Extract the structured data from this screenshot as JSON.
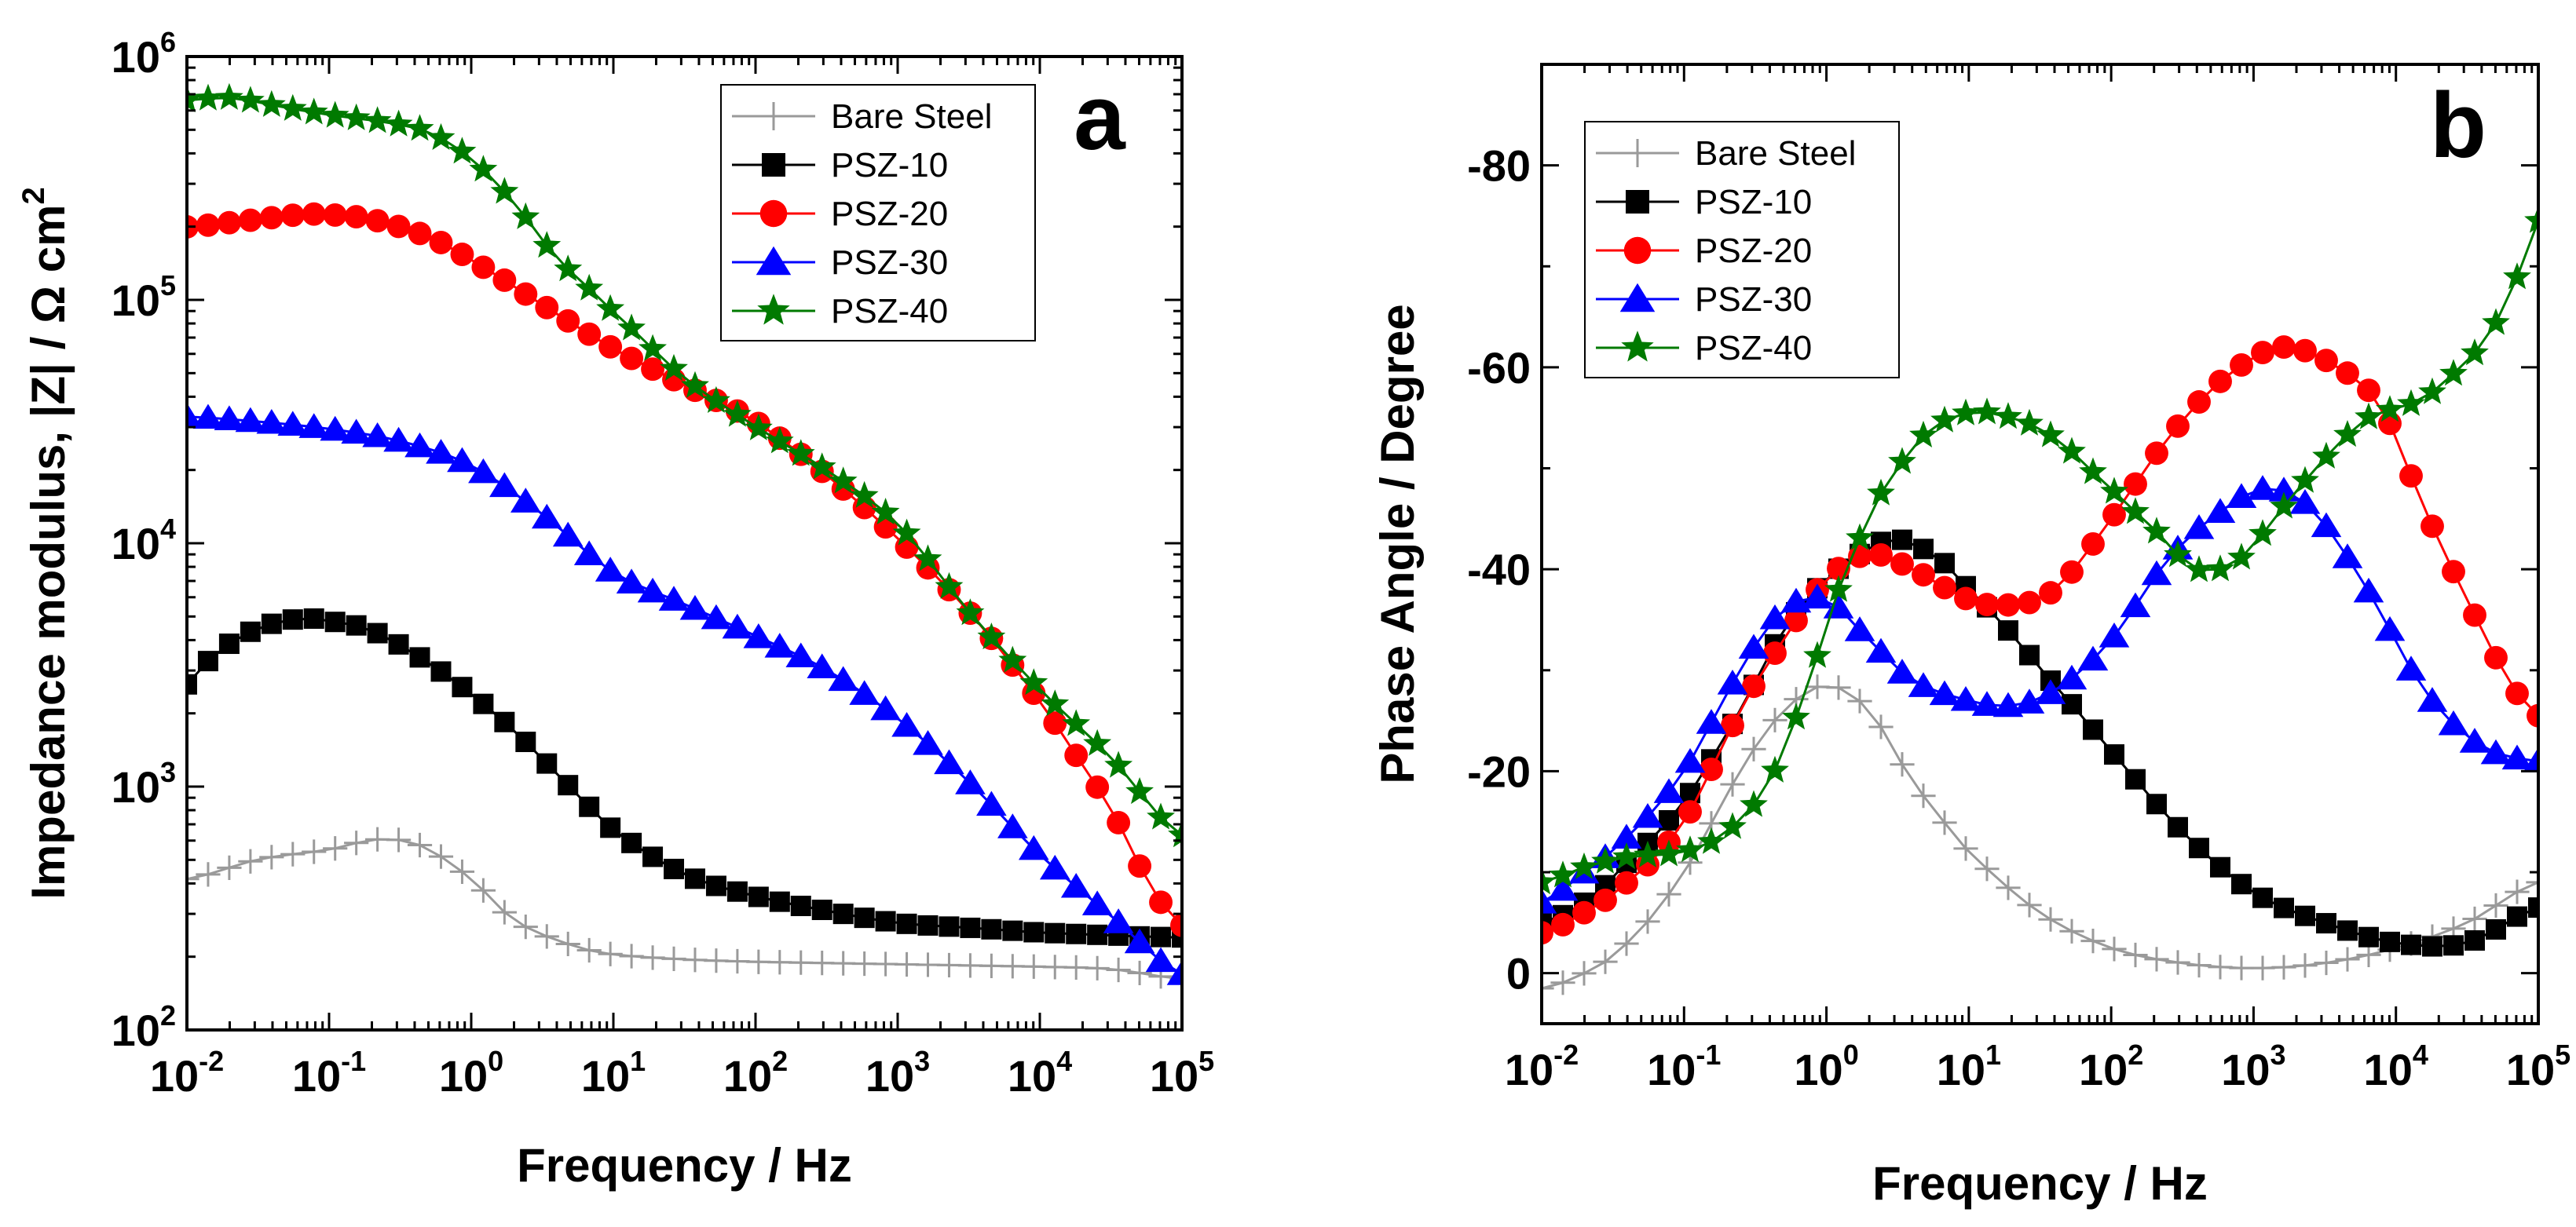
{
  "chart_data": [
    {
      "type": "line",
      "panel_label": "a",
      "xlabel": "Frequency / Hz",
      "ylabel": "Impedance modulus, |Z| / Ω cm",
      "ylabel_sup": "2",
      "x_scale": "log",
      "y_scale": "log",
      "xlim": [
        0.01,
        100000
      ],
      "ylim": [
        100,
        1000000
      ],
      "x_tick_labels": [
        {
          "base": "10",
          "exp": "-2"
        },
        {
          "base": "10",
          "exp": "-1"
        },
        {
          "base": "10",
          "exp": "0"
        },
        {
          "base": "10",
          "exp": "1"
        },
        {
          "base": "10",
          "exp": "2"
        },
        {
          "base": "10",
          "exp": "3"
        },
        {
          "base": "10",
          "exp": "4"
        },
        {
          "base": "10",
          "exp": "5"
        }
      ],
      "y_tick_labels": [
        {
          "base": "10",
          "exp": "2"
        },
        {
          "base": "10",
          "exp": "3"
        },
        {
          "base": "10",
          "exp": "4"
        },
        {
          "base": "10",
          "exp": "5"
        },
        {
          "base": "10",
          "exp": "6"
        }
      ],
      "legend_position": "top-right",
      "series": [
        {
          "name": "Bare Steel",
          "color": "#9a9a9a",
          "marker": "plus",
          "points": [
            [
              -2,
              2.62
            ],
            [
              -1.5,
              2.7
            ],
            [
              -1,
              2.74
            ],
            [
              -0.7,
              2.78
            ],
            [
              -0.5,
              2.78
            ],
            [
              -0.3,
              2.74
            ],
            [
              0,
              2.62
            ],
            [
              0.3,
              2.45
            ],
            [
              0.7,
              2.35
            ],
            [
              1,
              2.31
            ],
            [
              1.5,
              2.29
            ],
            [
              2,
              2.28
            ],
            [
              3,
              2.27
            ],
            [
              4,
              2.26
            ],
            [
              4.5,
              2.25
            ],
            [
              5,
              2.21
            ]
          ]
        },
        {
          "name": "PSZ-10",
          "color": "#000000",
          "marker": "square",
          "points": [
            [
              -2,
              3.42
            ],
            [
              -1.8,
              3.55
            ],
            [
              -1.5,
              3.65
            ],
            [
              -1.2,
              3.69
            ],
            [
              -1,
              3.68
            ],
            [
              -0.7,
              3.64
            ],
            [
              -0.3,
              3.51
            ],
            [
              0,
              3.38
            ],
            [
              0.3,
              3.23
            ],
            [
              0.6,
              3.05
            ],
            [
              1,
              2.82
            ],
            [
              1.5,
              2.64
            ],
            [
              2,
              2.55
            ],
            [
              2.5,
              2.49
            ],
            [
              3,
              2.44
            ],
            [
              3.5,
              2.42
            ],
            [
              4,
              2.4
            ],
            [
              5,
              2.38
            ]
          ]
        },
        {
          "name": "PSZ-20",
          "color": "#ff0000",
          "marker": "circle",
          "points": [
            [
              -2,
              5.3
            ],
            [
              -1.5,
              5.33
            ],
            [
              -1.2,
              5.35
            ],
            [
              -1,
              5.35
            ],
            [
              -0.7,
              5.33
            ],
            [
              -0.3,
              5.26
            ],
            [
              0,
              5.16
            ],
            [
              0.5,
              4.98
            ],
            [
              1,
              4.8
            ],
            [
              1.5,
              4.65
            ],
            [
              2,
              4.5
            ],
            [
              2.5,
              4.28
            ],
            [
              3,
              4.02
            ],
            [
              3.5,
              3.72
            ],
            [
              4,
              3.35
            ],
            [
              4.5,
              2.92
            ],
            [
              4.8,
              2.58
            ],
            [
              5,
              2.43
            ]
          ]
        },
        {
          "name": "PSZ-30",
          "color": "#0000ff",
          "marker": "triangle",
          "points": [
            [
              -2,
              4.52
            ],
            [
              -1.5,
              4.5
            ],
            [
              -1,
              4.47
            ],
            [
              -0.5,
              4.42
            ],
            [
              0,
              4.32
            ],
            [
              0.5,
              4.12
            ],
            [
              1,
              3.88
            ],
            [
              1.5,
              3.75
            ],
            [
              2,
              3.62
            ],
            [
              2.5,
              3.48
            ],
            [
              3,
              3.28
            ],
            [
              3.5,
              3.02
            ],
            [
              4,
              2.72
            ],
            [
              4.5,
              2.47
            ],
            [
              5,
              2.23
            ]
          ]
        },
        {
          "name": "PSZ-40",
          "color": "#007a00",
          "marker": "star",
          "points": [
            [
              -2,
              5.82
            ],
            [
              -1.7,
              5.83
            ],
            [
              -1.3,
              5.79
            ],
            [
              -1,
              5.76
            ],
            [
              -0.6,
              5.73
            ],
            [
              -0.3,
              5.69
            ],
            [
              0,
              5.58
            ],
            [
              0.3,
              5.4
            ],
            [
              0.6,
              5.17
            ],
            [
              1,
              4.95
            ],
            [
              1.5,
              4.68
            ],
            [
              2,
              4.48
            ],
            [
              2.5,
              4.3
            ],
            [
              3,
              4.08
            ],
            [
              3.5,
              3.72
            ],
            [
              4,
              3.4
            ],
            [
              4.5,
              3.12
            ],
            [
              5,
              2.8
            ]
          ]
        }
      ]
    },
    {
      "type": "line",
      "panel_label": "b",
      "xlabel": "Frequency / Hz",
      "ylabel": "Phase Angle / Degree",
      "x_scale": "log",
      "y_scale": "linear",
      "y_axis_inverted": true,
      "xlim": [
        0.01,
        100000
      ],
      "ylim": [
        5,
        -90
      ],
      "x_tick_labels": [
        {
          "base": "10",
          "exp": "-2"
        },
        {
          "base": "10",
          "exp": "-1"
        },
        {
          "base": "10",
          "exp": "0"
        },
        {
          "base": "10",
          "exp": "1"
        },
        {
          "base": "10",
          "exp": "2"
        },
        {
          "base": "10",
          "exp": "3"
        },
        {
          "base": "10",
          "exp": "4"
        },
        {
          "base": "10",
          "exp": "5"
        }
      ],
      "y_ticks": [
        0,
        -20,
        -40,
        -60,
        -80
      ],
      "y_tick_labels": [
        "0",
        "-20",
        "-40",
        "-60",
        "-80"
      ],
      "legend_position": "top-left",
      "series": [
        {
          "name": "Bare Steel",
          "color": "#9a9a9a",
          "marker": "plus",
          "points": [
            [
              -2,
              1.5
            ],
            [
              -1.7,
              0
            ],
            [
              -1.4,
              -3
            ],
            [
              -1,
              -10
            ],
            [
              -0.6,
              -20
            ],
            [
              -0.3,
              -26
            ],
            [
              0,
              -28.5
            ],
            [
              0.3,
              -26
            ],
            [
              0.6,
              -19
            ],
            [
              1,
              -12
            ],
            [
              1.5,
              -6
            ],
            [
              2,
              -2.5
            ],
            [
              2.5,
              -1
            ],
            [
              3,
              -0.5
            ],
            [
              3.5,
              -1
            ],
            [
              4,
              -2.5
            ],
            [
              4.5,
              -5
            ],
            [
              5,
              -9
            ]
          ]
        },
        {
          "name": "PSZ-10",
          "color": "#000000",
          "marker": "square",
          "points": [
            [
              -2,
              -5
            ],
            [
              -1.7,
              -7
            ],
            [
              -1.4,
              -11
            ],
            [
              -1,
              -17
            ],
            [
              -0.6,
              -26
            ],
            [
              -0.3,
              -34
            ],
            [
              0,
              -39
            ],
            [
              0.3,
              -42
            ],
            [
              0.5,
              -43
            ],
            [
              0.8,
              -41
            ],
            [
              1,
              -38
            ],
            [
              1.2,
              -35
            ],
            [
              1.5,
              -30
            ],
            [
              2,
              -22
            ],
            [
              2.5,
              -14
            ],
            [
              3,
              -8
            ],
            [
              3.5,
              -5
            ],
            [
              4,
              -3
            ],
            [
              4.5,
              -3
            ],
            [
              5,
              -6.5
            ]
          ]
        },
        {
          "name": "PSZ-20",
          "color": "#ff0000",
          "marker": "circle",
          "points": [
            [
              -2,
              -4
            ],
            [
              -1.7,
              -6
            ],
            [
              -1.4,
              -9
            ],
            [
              -1,
              -15
            ],
            [
              -0.6,
              -26
            ],
            [
              -0.3,
              -33
            ],
            [
              0,
              -39
            ],
            [
              0.3,
              -41.5
            ],
            [
              0.6,
              -40
            ],
            [
              1,
              -37
            ],
            [
              1.3,
              -36.5
            ],
            [
              1.6,
              -38
            ],
            [
              2,
              -45
            ],
            [
              2.4,
              -53
            ],
            [
              2.8,
              -59
            ],
            [
              3.2,
              -62
            ],
            [
              3.6,
              -60
            ],
            [
              3.9,
              -56
            ],
            [
              4.2,
              -46
            ],
            [
              4.5,
              -37
            ],
            [
              4.8,
              -29
            ],
            [
              5,
              -25.5
            ]
          ]
        },
        {
          "name": "PSZ-30",
          "color": "#0000ff",
          "marker": "triangle",
          "points": [
            [
              -2,
              -7
            ],
            [
              -1.7,
              -10
            ],
            [
              -1.4,
              -13.5
            ],
            [
              -1,
              -20
            ],
            [
              -0.6,
              -30
            ],
            [
              -0.3,
              -36
            ],
            [
              0,
              -37
            ],
            [
              0.3,
              -33
            ],
            [
              0.6,
              -29
            ],
            [
              1,
              -27
            ],
            [
              1.3,
              -26.5
            ],
            [
              1.6,
              -28
            ],
            [
              2,
              -33
            ],
            [
              2.4,
              -41
            ],
            [
              2.8,
              -46
            ],
            [
              3.1,
              -48
            ],
            [
              3.4,
              -46
            ],
            [
              3.8,
              -38
            ],
            [
              4.2,
              -28
            ],
            [
              4.6,
              -22.5
            ],
            [
              5,
              -21
            ]
          ]
        },
        {
          "name": "PSZ-40",
          "color": "#007a00",
          "marker": "star",
          "points": [
            [
              -2,
              -9
            ],
            [
              -1.7,
              -10.5
            ],
            [
              -1.4,
              -11.5
            ],
            [
              -1,
              -12
            ],
            [
              -0.7,
              -14
            ],
            [
              -0.4,
              -19
            ],
            [
              -0.1,
              -29
            ],
            [
              0,
              -35
            ],
            [
              0.2,
              -42
            ],
            [
              0.4,
              -48
            ],
            [
              0.7,
              -53.5
            ],
            [
              1,
              -55.5
            ],
            [
              1.3,
              -55
            ],
            [
              1.6,
              -53
            ],
            [
              2,
              -48
            ],
            [
              2.3,
              -44
            ],
            [
              2.6,
              -40
            ],
            [
              2.9,
              -41
            ],
            [
              3.2,
              -46
            ],
            [
              3.5,
              -51
            ],
            [
              3.8,
              -55
            ],
            [
              4.2,
              -57
            ],
            [
              4.6,
              -62
            ],
            [
              4.8,
              -67
            ],
            [
              5,
              -74.5
            ]
          ]
        }
      ]
    }
  ]
}
